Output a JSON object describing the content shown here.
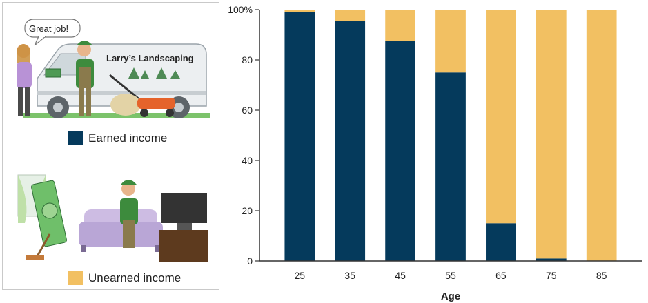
{
  "legend": {
    "speech_bubble": "Great job!",
    "van_sign": "Larry’s Landscaping",
    "earned_label": "Earned income",
    "unearned_label": "Unearned income"
  },
  "colors": {
    "earned": "#053a5c",
    "unearned": "#f2c062"
  },
  "chart_data": {
    "type": "bar",
    "stacked": true,
    "categories": [
      "25",
      "35",
      "45",
      "55",
      "65",
      "75",
      "85"
    ],
    "series": [
      {
        "name": "Earned income",
        "values": [
          99,
          95.5,
          87.5,
          75,
          15,
          1,
          0
        ]
      },
      {
        "name": "Unearned income",
        "values": [
          1,
          4.5,
          12.5,
          25,
          85,
          99,
          100
        ]
      }
    ],
    "title": "",
    "xlabel": "Age",
    "ylabel": "",
    "ylim": [
      0,
      100
    ],
    "yticks": [
      "0",
      "20",
      "40",
      "60",
      "80",
      "100%"
    ],
    "grid": false,
    "legend_position": "left"
  }
}
